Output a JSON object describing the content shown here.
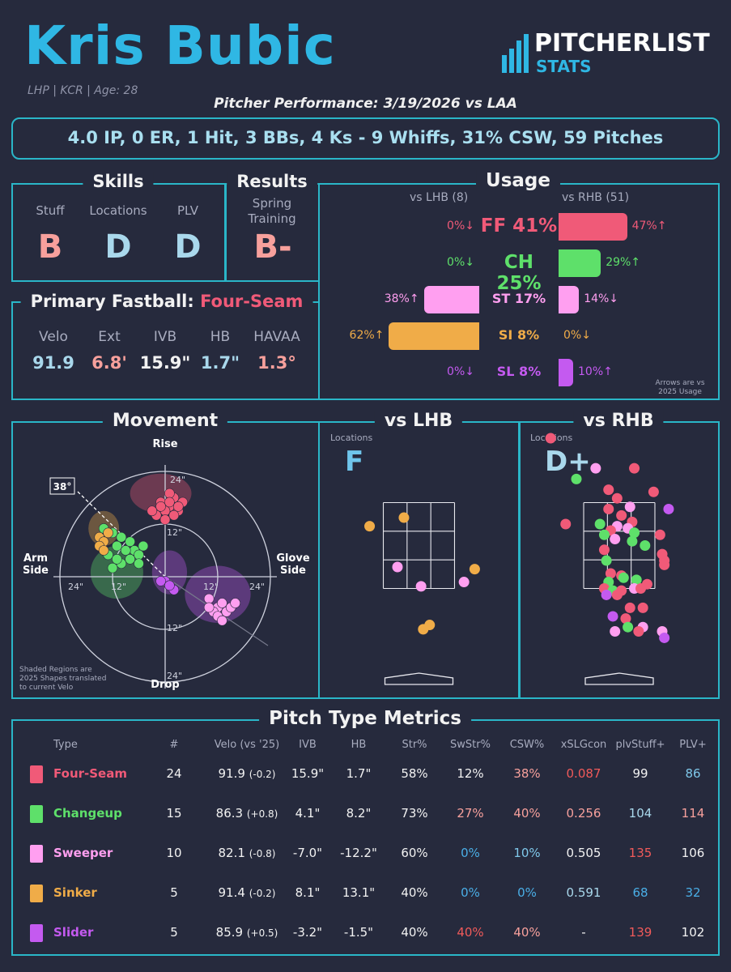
{
  "header": {
    "name": "Kris Bubic",
    "sub": "LHP | KCR | Age: 28",
    "performance": "Pitcher Performance: 3/19/2026 vs LAA",
    "logo_main": "PITCHERLIST",
    "logo_sub": "STATS"
  },
  "summary": "4.0 IP, 0 ER, 1 Hit, 3 BBs, 4 Ks - 9 Whiffs, 31% CSW, 59 Pitches",
  "skills": {
    "title": "Skills",
    "items": [
      {
        "label": "Stuff",
        "grade": "B",
        "color": "#f7a09c"
      },
      {
        "label": "Locations",
        "grade": "D",
        "color": "#a9d8ec"
      },
      {
        "label": "PLV",
        "grade": "D",
        "color": "#a9d8ec"
      }
    ]
  },
  "results": {
    "title": "Results",
    "label": "Spring Training",
    "grade": "B-",
    "color": "#f7a09c"
  },
  "fastball": {
    "title": "Primary Fastball:",
    "pitch": "Four-Seam",
    "stats": [
      {
        "label": "Velo",
        "value": "91.9",
        "color": "#a9d8ec"
      },
      {
        "label": "Ext",
        "value": "6.8'",
        "color": "#f7a09c"
      },
      {
        "label": "IVB",
        "value": "15.9\"",
        "color": "#f2f2f2"
      },
      {
        "label": "HB",
        "value": "1.7\"",
        "color": "#a9d8ec"
      },
      {
        "label": "HAVAA",
        "value": "1.3°",
        "color": "#f7a09c"
      }
    ]
  },
  "usage": {
    "title": "Usage",
    "lhb_header": "vs LHB (8)",
    "rhb_header": "vs RHB (51)",
    "note": "Arrows are vs 2025 Usage",
    "rows": [
      {
        "pitch": "FF 41%",
        "color": "#f05a78",
        "lhb": 0,
        "lhb_label": "0%↓",
        "rhb": 47,
        "rhb_label": "47%↑",
        "big": true
      },
      {
        "pitch": "CH 25%",
        "color": "#5ee06a",
        "lhb": 0,
        "lhb_label": "0%↓",
        "rhb": 29,
        "rhb_label": "29%↑",
        "big": true
      },
      {
        "pitch": "ST 17%",
        "color": "#ff9ff0",
        "lhb": 38,
        "lhb_label": "38%↑",
        "rhb": 14,
        "rhb_label": "14%↓",
        "big": false
      },
      {
        "pitch": "SI 8%",
        "color": "#f0ac48",
        "lhb": 62,
        "lhb_label": "62%↑",
        "rhb": 0,
        "rhb_label": "0%↓",
        "big": false
      },
      {
        "pitch": "SL 8%",
        "color": "#c45af0",
        "lhb": 0,
        "lhb_label": "0%↓",
        "rhb": 10,
        "rhb_label": "10%↑",
        "big": false
      }
    ]
  },
  "movement": {
    "title": "Movement",
    "rise": "Rise",
    "drop": "Drop",
    "arm": "Arm Side",
    "glove": "Glove Side",
    "ring_labels": [
      "24\"",
      "12\"",
      "12\"",
      "24\""
    ],
    "side_labels": [
      "24\"",
      "12\"",
      "12\"",
      "24\""
    ],
    "angle": "38°",
    "note": "Shaded Regions are 2025 Shapes translated to current Velo"
  },
  "vs_lhb": {
    "title": "vs LHB",
    "label": "Locations",
    "grade": "F",
    "grade_color": "#6fc6ec"
  },
  "vs_rhb": {
    "title": "vs RHB",
    "label": "Locations",
    "grade": "D+",
    "grade_color": "#a9d8ec"
  },
  "table": {
    "title": "Pitch Type Metrics",
    "headers": [
      "Type",
      "#",
      "Velo (vs '25)",
      "IVB",
      "HB",
      "Str%",
      "SwStr%",
      "CSW%",
      "xSLGcon",
      "plvStuff+",
      "PLV+"
    ],
    "rows": [
      {
        "type": "Four-Seam",
        "color": "#f05a78",
        "n": "24",
        "velo": "91.9",
        "vd": "(-0.2)",
        "ivb": "15.9\"",
        "hb": "1.7\"",
        "str": "58%",
        "swstr": "12%",
        "csw": "38%",
        "xslg": "0.087",
        "stuff": "99",
        "plv": "86",
        "c": {
          "str": "#f2f2f2",
          "swstr": "#f2f2f2",
          "csw": "#f7a09c",
          "xslg": "#f05a5a",
          "stuff": "#f2f2f2",
          "plv": "#7fc8ea"
        }
      },
      {
        "type": "Changeup",
        "color": "#5ee06a",
        "n": "15",
        "velo": "86.3",
        "vd": "(+0.8)",
        "ivb": "4.1\"",
        "hb": "8.2\"",
        "str": "73%",
        "swstr": "27%",
        "csw": "40%",
        "xslg": "0.256",
        "stuff": "104",
        "plv": "114",
        "c": {
          "str": "#f2f2f2",
          "swstr": "#f7a09c",
          "csw": "#f7a09c",
          "xslg": "#f7a09c",
          "stuff": "#a9d8ec",
          "plv": "#f7a09c"
        }
      },
      {
        "type": "Sweeper",
        "color": "#ff9ff0",
        "n": "10",
        "velo": "82.1",
        "vd": "(-0.8)",
        "ivb": "-7.0\"",
        "hb": "-12.2\"",
        "str": "60%",
        "swstr": "0%",
        "csw": "10%",
        "xslg": "0.505",
        "stuff": "135",
        "plv": "106",
        "c": {
          "str": "#f2f2f2",
          "swstr": "#4aaee6",
          "csw": "#7fc8ea",
          "xslg": "#f2f2f2",
          "stuff": "#f05a5a",
          "plv": "#f2f2f2"
        }
      },
      {
        "type": "Sinker",
        "color": "#f0ac48",
        "n": "5",
        "velo": "91.4",
        "vd": "(-0.2)",
        "ivb": "8.1\"",
        "hb": "13.1\"",
        "str": "40%",
        "swstr": "0%",
        "csw": "0%",
        "xslg": "0.591",
        "stuff": "68",
        "plv": "32",
        "c": {
          "str": "#f2f2f2",
          "swstr": "#4aaee6",
          "csw": "#4aaee6",
          "xslg": "#a9d8ec",
          "stuff": "#4aaee6",
          "plv": "#4aaee6"
        }
      },
      {
        "type": "Slider",
        "color": "#c45af0",
        "n": "5",
        "velo": "85.9",
        "vd": "(+0.5)",
        "ivb": "-3.2\"",
        "hb": "-1.5\"",
        "str": "40%",
        "swstr": "40%",
        "csw": "40%",
        "xslg": "-",
        "stuff": "139",
        "plv": "102",
        "c": {
          "str": "#f2f2f2",
          "swstr": "#f05a5a",
          "csw": "#f7a09c",
          "xslg": "#f2f2f2",
          "stuff": "#f05a5a",
          "plv": "#f2f2f2"
        }
      }
    ]
  },
  "chart_data": [
    {
      "type": "bar",
      "title": "Usage",
      "categories": [
        "FF",
        "CH",
        "ST",
        "SI",
        "SL"
      ],
      "series": [
        {
          "name": "vs LHB (8)",
          "values": [
            0,
            0,
            38,
            62,
            0
          ]
        },
        {
          "name": "vs RHB (51)",
          "values": [
            47,
            29,
            14,
            0,
            10
          ]
        }
      ],
      "ylim": [
        0,
        100
      ]
    },
    {
      "type": "scatter",
      "title": "Movement",
      "xlabel": "HB",
      "ylabel": "IVB",
      "xlim": [
        -30,
        30
      ],
      "ylim": [
        -30,
        30
      ],
      "series": [
        {
          "name": "FF",
          "color": "#f05a78",
          "points": [
            [
              -1,
              17
            ],
            [
              1,
              16
            ],
            [
              0,
              15
            ],
            [
              2,
              18
            ],
            [
              -2,
              14
            ],
            [
              3,
              15
            ],
            [
              1,
              19
            ],
            [
              -1,
              16
            ],
            [
              2,
              14
            ],
            [
              4,
              17
            ],
            [
              0,
              13
            ],
            [
              -3,
              15
            ],
            [
              1,
              17
            ],
            [
              3,
              16
            ]
          ]
        },
        {
          "name": "CH",
          "color": "#5ee06a",
          "points": [
            [
              -14,
              11
            ],
            [
              -12,
              10
            ],
            [
              -10,
              9
            ],
            [
              -8,
              8
            ],
            [
              -7,
              6
            ],
            [
              -6,
              5
            ],
            [
              -9,
              6
            ],
            [
              -11,
              7
            ],
            [
              -5,
              7
            ],
            [
              -13,
              5
            ],
            [
              -10,
              3
            ],
            [
              -12,
              2
            ],
            [
              -8,
              4
            ],
            [
              -6,
              3
            ],
            [
              -11,
              4
            ]
          ]
        },
        {
          "name": "ST",
          "color": "#ff9ff0",
          "points": [
            [
              10,
              -5
            ],
            [
              12,
              -7
            ],
            [
              13,
              -6
            ],
            [
              11,
              -8
            ],
            [
              14,
              -8
            ],
            [
              15,
              -7
            ],
            [
              12,
              -9
            ],
            [
              10,
              -7
            ],
            [
              13,
              -10
            ],
            [
              16,
              -6
            ]
          ]
        },
        {
          "name": "SI",
          "color": "#f0ac48",
          "points": [
            [
              -15,
              9
            ],
            [
              -14,
              8
            ],
            [
              -13,
              10
            ],
            [
              -15,
              7
            ],
            [
              -14,
              6
            ]
          ]
        },
        {
          "name": "SL",
          "color": "#c45af0",
          "points": [
            [
              0,
              -1
            ],
            [
              1,
              -2
            ],
            [
              -1,
              -1
            ],
            [
              2,
              -3
            ],
            [
              1,
              -2
            ]
          ]
        }
      ],
      "regions": [
        {
          "name": "FF",
          "color": "#f05a78",
          "cx": -1,
          "cy": 19,
          "rx": 7,
          "ry": 4.5
        },
        {
          "name": "SI",
          "color": "#f0ac48",
          "cx": -14,
          "cy": 11,
          "rx": 3.5,
          "ry": 4
        },
        {
          "name": "CH",
          "color": "#5ee06a",
          "cx": -11,
          "cy": 1,
          "rx": 6,
          "ry": 6
        },
        {
          "name": "SL",
          "color": "#c45af0",
          "cx": 1,
          "cy": 1,
          "rx": 4,
          "ry": 5
        },
        {
          "name": "ST",
          "color": "#c45af0",
          "cx": 12,
          "cy": -4,
          "rx": 7.5,
          "ry": 6.5
        }
      ]
    },
    {
      "type": "scatter",
      "title": "vs LHB",
      "xlim": [
        -2.5,
        2.5
      ],
      "ylim": [
        0,
        5
      ],
      "points": [
        {
          "x": -0.35,
          "y": 3.15,
          "c": "#f0ac48"
        },
        {
          "x": -1.15,
          "y": 2.95,
          "c": "#f0ac48"
        },
        {
          "x": -0.5,
          "y": 2.0,
          "c": "#ff9ff0"
        },
        {
          "x": 0.05,
          "y": 1.55,
          "c": "#ff9ff0"
        },
        {
          "x": 1.05,
          "y": 1.65,
          "c": "#ff9ff0"
        },
        {
          "x": 1.3,
          "y": 1.95,
          "c": "#f0ac48"
        },
        {
          "x": 0.1,
          "y": 0.55,
          "c": "#f0ac48"
        },
        {
          "x": 0.25,
          "y": 0.65,
          "c": "#f0ac48"
        }
      ]
    },
    {
      "type": "scatter",
      "title": "vs RHB",
      "xlim": [
        -2.5,
        2.5
      ],
      "ylim": [
        0,
        5
      ],
      "points": [
        {
          "x": -1.6,
          "y": 5.0,
          "c": "#f05a78"
        },
        {
          "x": -0.55,
          "y": 4.3,
          "c": "#ff9ff0"
        },
        {
          "x": 0.35,
          "y": 4.3,
          "c": "#f05a78"
        },
        {
          "x": -1.0,
          "y": 4.05,
          "c": "#5ee06a"
        },
        {
          "x": -0.25,
          "y": 3.8,
          "c": "#f05a78"
        },
        {
          "x": 0.8,
          "y": 3.75,
          "c": "#f05a78"
        },
        {
          "x": -0.05,
          "y": 3.6,
          "c": "#f05a78"
        },
        {
          "x": -0.25,
          "y": 3.35,
          "c": "#f05a78"
        },
        {
          "x": 0.25,
          "y": 3.4,
          "c": "#ff9ff0"
        },
        {
          "x": 1.15,
          "y": 3.35,
          "c": "#c45af0"
        },
        {
          "x": 0.05,
          "y": 3.2,
          "c": "#f05a78"
        },
        {
          "x": 0.3,
          "y": 3.05,
          "c": "#f05a78"
        },
        {
          "x": -1.25,
          "y": 3.0,
          "c": "#f05a78"
        },
        {
          "x": -0.45,
          "y": 3.0,
          "c": "#5ee06a"
        },
        {
          "x": -0.05,
          "y": 2.95,
          "c": "#ff9ff0"
        },
        {
          "x": 0.2,
          "y": 2.9,
          "c": "#ff9ff0"
        },
        {
          "x": -0.2,
          "y": 2.85,
          "c": "#f05a78"
        },
        {
          "x": -0.35,
          "y": 2.75,
          "c": "#5ee06a"
        },
        {
          "x": 0.35,
          "y": 2.8,
          "c": "#5ee06a"
        },
        {
          "x": -0.1,
          "y": 2.65,
          "c": "#ff9ff0"
        },
        {
          "x": 0.3,
          "y": 2.6,
          "c": "#5ee06a"
        },
        {
          "x": 0.95,
          "y": 2.75,
          "c": "#f05a78"
        },
        {
          "x": -0.35,
          "y": 2.4,
          "c": "#f05a78"
        },
        {
          "x": 0.6,
          "y": 2.5,
          "c": "#5ee06a"
        },
        {
          "x": 1.0,
          "y": 2.3,
          "c": "#f05a78"
        },
        {
          "x": -0.3,
          "y": 2.15,
          "c": "#5ee06a"
        },
        {
          "x": 1.05,
          "y": 2.15,
          "c": "#f05a78"
        },
        {
          "x": 1.05,
          "y": 2.05,
          "c": "#f05a78"
        },
        {
          "x": -0.2,
          "y": 1.85,
          "c": "#f05a78"
        },
        {
          "x": 0.05,
          "y": 1.8,
          "c": "#f05a78"
        },
        {
          "x": -0.25,
          "y": 1.65,
          "c": "#5ee06a"
        },
        {
          "x": 0.1,
          "y": 1.75,
          "c": "#5ee06a"
        },
        {
          "x": 0.4,
          "y": 1.7,
          "c": "#5ee06a"
        },
        {
          "x": 0.65,
          "y": 1.6,
          "c": "#f05a78"
        },
        {
          "x": -0.35,
          "y": 1.5,
          "c": "#f05a78"
        },
        {
          "x": -0.15,
          "y": 1.45,
          "c": "#5ee06a"
        },
        {
          "x": 0.05,
          "y": 1.45,
          "c": "#f05a78"
        },
        {
          "x": 0.35,
          "y": 1.5,
          "c": "#ff9ff0"
        },
        {
          "x": 0.5,
          "y": 1.5,
          "c": "#f05a78"
        },
        {
          "x": -0.3,
          "y": 1.35,
          "c": "#c45af0"
        },
        {
          "x": -0.05,
          "y": 1.35,
          "c": "#f05a78"
        },
        {
          "x": 0.25,
          "y": 1.05,
          "c": "#f05a78"
        },
        {
          "x": 0.55,
          "y": 1.05,
          "c": "#f05a78"
        },
        {
          "x": -0.15,
          "y": 0.85,
          "c": "#c45af0"
        },
        {
          "x": 0.15,
          "y": 0.8,
          "c": "#f05a78"
        },
        {
          "x": 0.2,
          "y": 0.6,
          "c": "#5ee06a"
        },
        {
          "x": 0.55,
          "y": 0.6,
          "c": "#ff9ff0"
        },
        {
          "x": 0.45,
          "y": 0.5,
          "c": "#f05a78"
        },
        {
          "x": -0.1,
          "y": 0.5,
          "c": "#ff9ff0"
        },
        {
          "x": 1.0,
          "y": 0.5,
          "c": "#ff9ff0"
        },
        {
          "x": 1.05,
          "y": 0.35,
          "c": "#c45af0"
        }
      ]
    }
  ]
}
